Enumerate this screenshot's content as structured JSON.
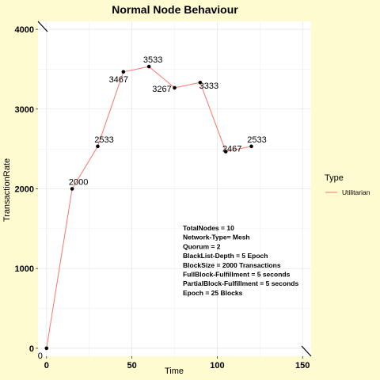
{
  "chart_data": {
    "type": "line",
    "title": "Normal Node Behaviour",
    "xlabel": "Time",
    "ylabel": "TransactionRate",
    "xlim": [
      -5,
      155
    ],
    "ylim": [
      -100,
      4100
    ],
    "x_ticks": [
      0,
      50,
      100,
      150
    ],
    "y_ticks": [
      0,
      1000,
      2000,
      3000,
      4000
    ],
    "grid": true,
    "legend": {
      "title": "Type",
      "placement": "right"
    },
    "series": [
      {
        "name": "Utilitarian",
        "color": "#f8766d",
        "x": [
          0,
          15,
          30,
          45,
          60,
          75,
          90,
          105,
          120
        ],
        "values": [
          0,
          2000,
          2533,
          3467,
          3533,
          3267,
          3333,
          2467,
          2533
        ],
        "labels": [
          "0",
          "2000",
          "2533",
          "3467",
          "3533",
          "3267",
          "3333",
          "2467",
          "2533"
        ]
      }
    ],
    "annotations": [
      "TotalNodes = 10",
      "Network-Type= Mesh",
      "Quorum = 2",
      "BlackList-Depth = 5 Epoch",
      "BlockSize = 2000 Transactions",
      "FullBlock-Fulfillment = 5 seconds",
      "PartialBlock-Fulfillment = 5 seconds",
      "Epoch = 25 Blocks"
    ]
  }
}
